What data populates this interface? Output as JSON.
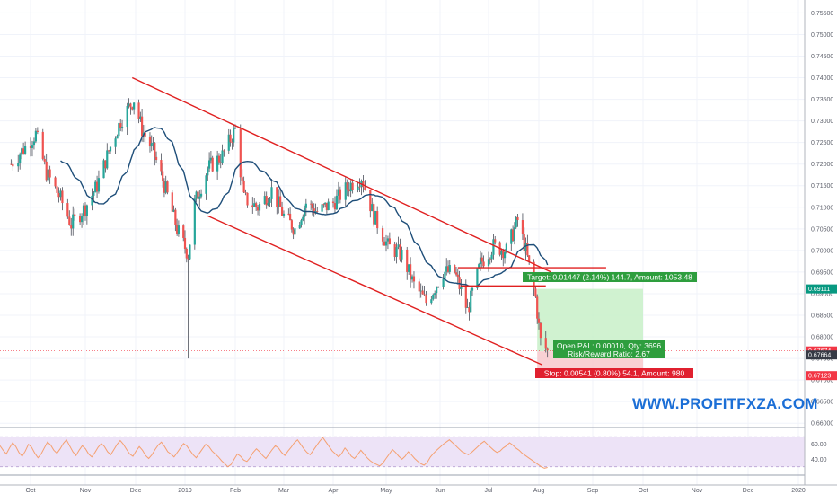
{
  "chart_data": {
    "type": "candlestick",
    "symbol": "",
    "price_axis": {
      "ticks": [
        "0.75500",
        "0.75000",
        "0.74500",
        "0.74000",
        "0.73500",
        "0.73000",
        "0.72500",
        "0.72000",
        "0.71500",
        "0.71000",
        "0.70500",
        "0.70000",
        "0.69500",
        "0.69000",
        "0.68500",
        "0.68000",
        "0.67500",
        "0.67000",
        "0.66500",
        "0.66000"
      ],
      "range": [
        0.659,
        0.758
      ]
    },
    "time_axis": {
      "ticks": [
        "Oct",
        "Nov",
        "Dec",
        "2019",
        "Feb",
        "Mar",
        "Apr",
        "May",
        "Jun",
        "Jul",
        "Aug",
        "Sep",
        "Oct",
        "Nov",
        "Dec",
        "2020"
      ]
    },
    "price_tags": [
      {
        "label": "0.69111",
        "value": 0.69111,
        "color": "#089981"
      },
      {
        "label": "0.67674",
        "value": 0.67674,
        "color": "#f23645"
      },
      {
        "label": "0.67664",
        "value": 0.67664,
        "color": "#363a45"
      },
      {
        "label": "0.67123",
        "value": 0.67123,
        "color": "#f23645"
      }
    ],
    "channel": {
      "upper": [
        {
          "date": "2018-11-29",
          "price": 0.74
        },
        {
          "date": "2019-08-08",
          "price": 0.695
        }
      ],
      "lower": [
        {
          "date": "2019-01-15",
          "price": 0.708
        },
        {
          "date": "2019-08-03",
          "price": 0.6735
        }
      ]
    },
    "levels": [
      {
        "price": 0.696,
        "from": "2019-06-12",
        "to": "2019-09-09"
      },
      {
        "price": 0.6918,
        "from": "2019-06-14",
        "to": "2019-08-05"
      }
    ],
    "position": {
      "entry": 0.67664,
      "target": 0.69111,
      "stop": 0.67123,
      "from": "2019-07-31",
      "to": "2019-10-01",
      "target_label": "Target: 0.01447 (2.14%) 144.7, Amount: 1053.48",
      "open_label": "Open P&L: 0.00010, Qty: 3696",
      "ratio_label": "Risk/Reward Ratio: 2.67",
      "stop_label": "Stop: 0.00541 (0.80%) 54.1, Amount: 980"
    },
    "rsi": {
      "ticks": [
        "60.00",
        "40.00"
      ],
      "band": [
        30,
        70
      ],
      "values": [
        58,
        52,
        47,
        55,
        62,
        57,
        49,
        44,
        51,
        60,
        56,
        48,
        42,
        47,
        55,
        63,
        59,
        52,
        48,
        54,
        61,
        66,
        58,
        50,
        45,
        52,
        58,
        54,
        47,
        43,
        49,
        56,
        61,
        57,
        50,
        46,
        53,
        60,
        65,
        60,
        53,
        47,
        44,
        51,
        57,
        52,
        45,
        41,
        46,
        53,
        59,
        63,
        57,
        50,
        47,
        43,
        49,
        55,
        61,
        58,
        52,
        46,
        42,
        48,
        54,
        60,
        57,
        51,
        47,
        43,
        38,
        34,
        30,
        33,
        40,
        47,
        44,
        39,
        37,
        42,
        49,
        54,
        50,
        45,
        41,
        47,
        53,
        58,
        55,
        49,
        45,
        51,
        56,
        62,
        66,
        60,
        54,
        49,
        46,
        52,
        58,
        64,
        69,
        63,
        57,
        51,
        47,
        43,
        48,
        55,
        50,
        44,
        41,
        46,
        52,
        47,
        42,
        38,
        35,
        33,
        31,
        35,
        41,
        47,
        53,
        49,
        44,
        40,
        44,
        50,
        46,
        41,
        37,
        34,
        32,
        36,
        43,
        48,
        52,
        56,
        60,
        63,
        66,
        62,
        58,
        54,
        50,
        48,
        46,
        49,
        53,
        57,
        61,
        64,
        60,
        56,
        52,
        49,
        51,
        55,
        58,
        62,
        59,
        55,
        52,
        48,
        45,
        42,
        39,
        36,
        33,
        30,
        28,
        29
      ]
    }
  },
  "watermark": "WWW.PROFITFXZA.COM"
}
